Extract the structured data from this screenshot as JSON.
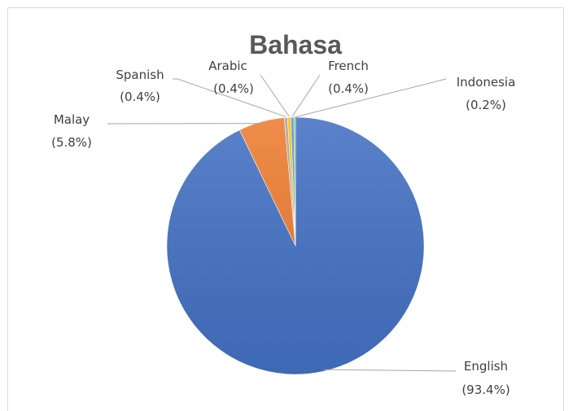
{
  "chart_data": {
    "type": "pie",
    "title": "Bahasa",
    "slices": [
      {
        "name": "English",
        "value": 93.4,
        "label": "(93.4%)",
        "color": "#4472c4"
      },
      {
        "name": "Malay",
        "value": 5.8,
        "label": "(5.8%)",
        "color": "#ed7d31"
      },
      {
        "name": "Spanish",
        "value": 0.4,
        "label": "(0.4%)",
        "color": "#a5a5a5"
      },
      {
        "name": "Arabic",
        "value": 0.4,
        "label": "(0.4%)",
        "color": "#ffc000"
      },
      {
        "name": "French",
        "value": 0.4,
        "label": "(0.4%)",
        "color": "#5b9bd5"
      },
      {
        "name": "Indonesia",
        "value": 0.2,
        "label": "(0.2%)",
        "color": "#70ad47"
      }
    ],
    "legend": "none",
    "data_labels": "outside with leader lines"
  }
}
